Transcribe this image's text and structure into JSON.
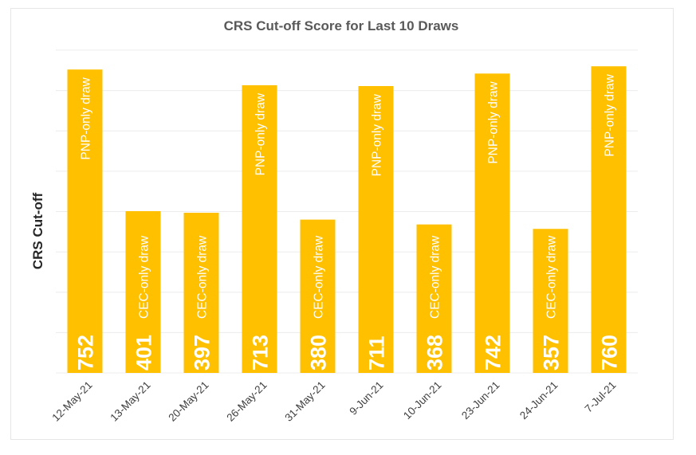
{
  "chart_data": {
    "type": "bar",
    "title": "CRS Cut-off Score for Last 10 Draws",
    "xlabel": "",
    "ylabel": "CRS Cut-off",
    "ylim": [
      0,
      800
    ],
    "grid": true,
    "bar_color": "#FFC000",
    "label_color": "#FFFFFF",
    "categories": [
      "12-May-21",
      "13-May-21",
      "20-May-21",
      "26-May-21",
      "31-May-21",
      "9-Jun-21",
      "10-Jun-21",
      "23-Jun-21",
      "24-Jun-21",
      "7-Jul-21"
    ],
    "values": [
      752,
      401,
      397,
      713,
      380,
      711,
      368,
      742,
      357,
      760
    ],
    "bar_labels": [
      "PNP-only draw",
      "CEC-only draw",
      "CEC-only draw",
      "PNP-only draw",
      "CEC-only draw",
      "PNP-only draw",
      "CEC-only draw",
      "PNP-only draw",
      "CEC-only draw",
      "PNP-only draw"
    ]
  }
}
